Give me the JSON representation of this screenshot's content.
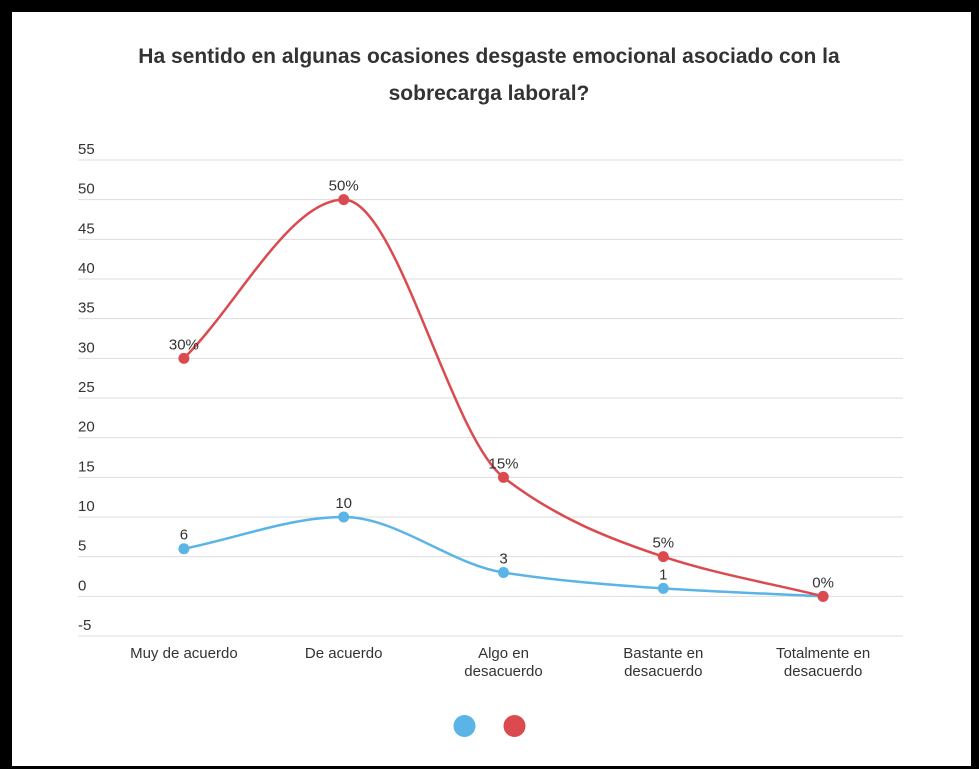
{
  "chart_data": {
    "type": "line",
    "title": "Ha sentido en algunas ocasiones desgaste emocional asociado con la sobrecarga laboral?",
    "categories": [
      "Muy de acuerdo",
      "De acuerdo",
      "Algo en desacuerdo",
      "Bastante en desacuerdo",
      "Totalmente en desacuerdo"
    ],
    "series": [
      {
        "color": "#5ab4e5",
        "values": [
          6,
          10,
          3,
          1,
          0
        ],
        "value_labels": [
          "6",
          "10",
          "3",
          "1",
          null
        ]
      },
      {
        "color": "#db4a4f",
        "values": [
          30,
          50,
          15,
          5,
          0
        ],
        "value_labels": [
          "30%",
          "50%",
          "15%",
          "5%",
          "0%"
        ]
      }
    ],
    "ylim": [
      -5,
      55
    ],
    "yticks": [
      -5,
      0,
      5,
      10,
      15,
      20,
      25,
      30,
      35,
      40,
      45,
      50,
      55
    ],
    "grid": true,
    "smooth": true,
    "legend": "bottom"
  }
}
